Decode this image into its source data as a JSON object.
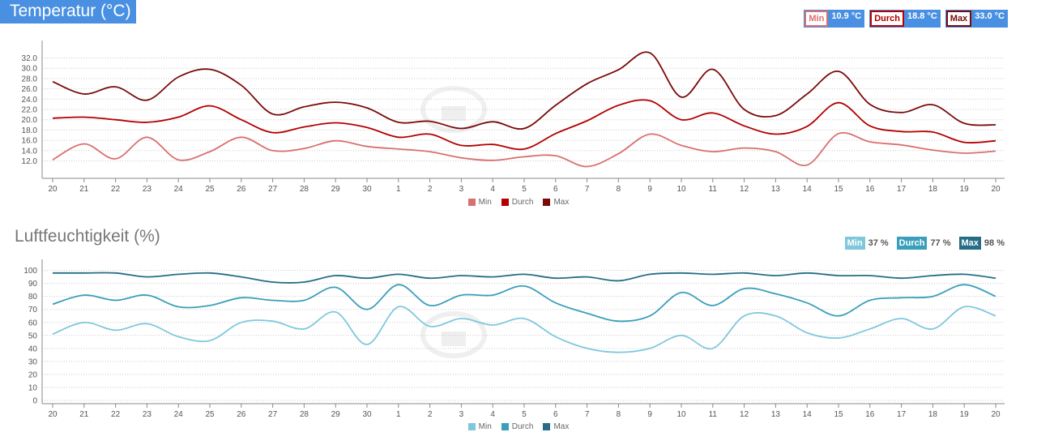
{
  "temperature": {
    "title": "Temperatur (°C)",
    "badges": [
      {
        "label": "Min",
        "value": "10.9 °C",
        "color": "#d9706f"
      },
      {
        "label": "Durch",
        "value": "18.8 °C",
        "color": "#b30000"
      },
      {
        "label": "Max",
        "value": "33.0 °C",
        "color": "#7a0a0a"
      }
    ]
  },
  "humidity": {
    "title": "Luftfeuchtigkeit (%)",
    "badges": [
      {
        "label": "Min",
        "value": "37 %",
        "color": "#7fc8dc"
      },
      {
        "label": "Durch",
        "value": "77 %",
        "color": "#3a9fba"
      },
      {
        "label": "Max",
        "value": "98 %",
        "color": "#256e86"
      }
    ]
  },
  "chart_data": [
    {
      "type": "line",
      "title": "Temperatur (°C)",
      "categories": [
        "20",
        "21",
        "22",
        "23",
        "24",
        "25",
        "26",
        "27",
        "28",
        "29",
        "30",
        "1",
        "2",
        "3",
        "4",
        "5",
        "6",
        "7",
        "8",
        "9",
        "10",
        "11",
        "12",
        "13",
        "14",
        "15",
        "16",
        "17",
        "18",
        "19",
        "20"
      ],
      "ylim": [
        10.5,
        33.5
      ],
      "yticks": [
        "12.0",
        "14.0",
        "16.0",
        "18.0",
        "20.0",
        "22.0",
        "24.0",
        "26.0",
        "28.0",
        "30.0",
        "32.0"
      ],
      "grid": true,
      "legend": "bottom-center",
      "series": [
        {
          "name": "Min",
          "color": "#d9706f",
          "values": [
            12.2,
            15.3,
            12.4,
            16.6,
            12.2,
            13.8,
            16.6,
            14.0,
            14.4,
            15.9,
            14.8,
            14.3,
            13.8,
            12.6,
            12.1,
            12.8,
            13.0,
            10.9,
            13.4,
            17.2,
            15.0,
            13.8,
            14.5,
            13.8,
            11.2,
            17.3,
            15.7,
            15.1,
            14.1,
            13.5,
            13.9
          ]
        },
        {
          "name": "Durch",
          "color": "#b30000",
          "values": [
            20.3,
            20.5,
            20.0,
            19.5,
            20.5,
            22.7,
            20.0,
            17.5,
            18.6,
            19.4,
            18.5,
            16.6,
            17.2,
            15.0,
            15.2,
            14.3,
            17.3,
            19.8,
            22.8,
            23.7,
            20.0,
            21.3,
            18.8,
            17.2,
            18.7,
            23.3,
            18.8,
            17.7,
            17.6,
            15.6,
            15.9
          ]
        },
        {
          "name": "Max",
          "color": "#7a0a0a",
          "values": [
            27.4,
            25.0,
            26.4,
            23.8,
            28.3,
            29.8,
            26.7,
            21.1,
            22.5,
            23.4,
            22.3,
            19.5,
            19.7,
            18.3,
            19.6,
            18.3,
            22.8,
            27.0,
            29.7,
            33.0,
            24.4,
            29.8,
            22.0,
            20.8,
            25.0,
            29.4,
            23.0,
            21.4,
            22.9,
            19.3,
            19.0
          ]
        }
      ]
    },
    {
      "type": "line",
      "title": "Luftfeuchtigkeit (%)",
      "categories": [
        "20",
        "21",
        "22",
        "23",
        "24",
        "25",
        "26",
        "27",
        "28",
        "29",
        "30",
        "1",
        "2",
        "3",
        "4",
        "5",
        "6",
        "7",
        "8",
        "9",
        "10",
        "11",
        "12",
        "13",
        "14",
        "15",
        "16",
        "17",
        "18",
        "19",
        "20"
      ],
      "ylim": [
        0,
        101
      ],
      "yticks": [
        "0",
        "10",
        "20",
        "30",
        "40",
        "50",
        "60",
        "70",
        "80",
        "90",
        "100"
      ],
      "grid": true,
      "legend": "bottom-center",
      "series": [
        {
          "name": "Min",
          "color": "#7fc8dc",
          "values": [
            51,
            60,
            54,
            59,
            49,
            46,
            60,
            61,
            55,
            68,
            43,
            72,
            57,
            63,
            58,
            63,
            49,
            40,
            37,
            40,
            50,
            40,
            65,
            65,
            52,
            48,
            55,
            63,
            55,
            72,
            65
          ]
        },
        {
          "name": "Durch",
          "color": "#3a9fba",
          "values": [
            74,
            81,
            77,
            81,
            72,
            73,
            79,
            77,
            77,
            87,
            70,
            89,
            73,
            81,
            81,
            88,
            75,
            67,
            61,
            65,
            83,
            73,
            86,
            82,
            75,
            65,
            77,
            79,
            80,
            89,
            80
          ]
        },
        {
          "name": "Max",
          "color": "#256e86",
          "values": [
            98,
            98,
            98,
            95,
            97,
            98,
            95,
            91,
            91,
            96,
            94,
            97,
            94,
            96,
            95,
            97,
            94,
            95,
            92,
            97,
            98,
            97,
            98,
            96,
            98,
            96,
            96,
            94,
            96,
            97,
            94
          ]
        }
      ]
    }
  ]
}
